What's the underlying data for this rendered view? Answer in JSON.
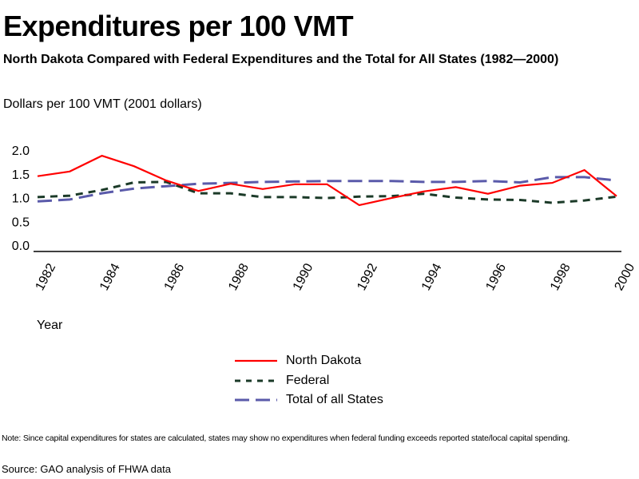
{
  "chart_data": {
    "type": "line",
    "title": "Expenditures per 100 VMT",
    "subtitle": "North Dakota Compared with Federal Expenditures and the Total for All States (1982—2000)",
    "ylabel": "Dollars per 100 VMT (2001 dollars)",
    "xlabel": "Year",
    "ylim": [
      0,
      2.0
    ],
    "yticks": [
      "0.0",
      "0.5",
      "1.0",
      "1.5",
      "2.0"
    ],
    "ytick_values": [
      0.0,
      0.5,
      1.0,
      1.5,
      2.0
    ],
    "xticks": [
      "1982",
      "1984",
      "1986",
      "1988",
      "1990",
      "1992",
      "1994",
      "1996",
      "1998",
      "2000"
    ],
    "x": [
      1982,
      1983,
      1984,
      1985,
      1986,
      1987,
      1988,
      1989,
      1990,
      1991,
      1992,
      1993,
      1994,
      1995,
      1996,
      1997,
      1998,
      1999,
      2000
    ],
    "grid": false,
    "legend_position": "bottom-center",
    "series": [
      {
        "name": "North Dakota",
        "style": "solid",
        "color": "#ff0000",
        "values": [
          1.45,
          1.55,
          1.88,
          1.66,
          1.36,
          1.14,
          1.29,
          1.18,
          1.28,
          1.28,
          0.84,
          0.99,
          1.13,
          1.22,
          1.08,
          1.25,
          1.31,
          1.58,
          1.03
        ]
      },
      {
        "name": "Federal",
        "style": "short-dash",
        "color": "#1b3a28",
        "values": [
          1.01,
          1.04,
          1.16,
          1.32,
          1.33,
          1.09,
          1.09,
          1.01,
          1.01,
          0.99,
          1.02,
          1.03,
          1.08,
          1.0,
          0.96,
          0.95,
          0.89,
          0.94,
          1.02
        ]
      },
      {
        "name": "Total of all States",
        "style": "long-dash",
        "color": "#5a5aaa",
        "values": [
          0.92,
          0.96,
          1.09,
          1.19,
          1.24,
          1.29,
          1.31,
          1.33,
          1.34,
          1.35,
          1.35,
          1.35,
          1.33,
          1.33,
          1.35,
          1.32,
          1.43,
          1.43,
          1.36
        ]
      }
    ]
  },
  "footer": {
    "note": "Note: Since capital expenditures for states are calculated, states may show no expenditures when federal funding exceeds reported state/local capital spending.",
    "source": "Source: GAO analysis of FHWA data"
  }
}
